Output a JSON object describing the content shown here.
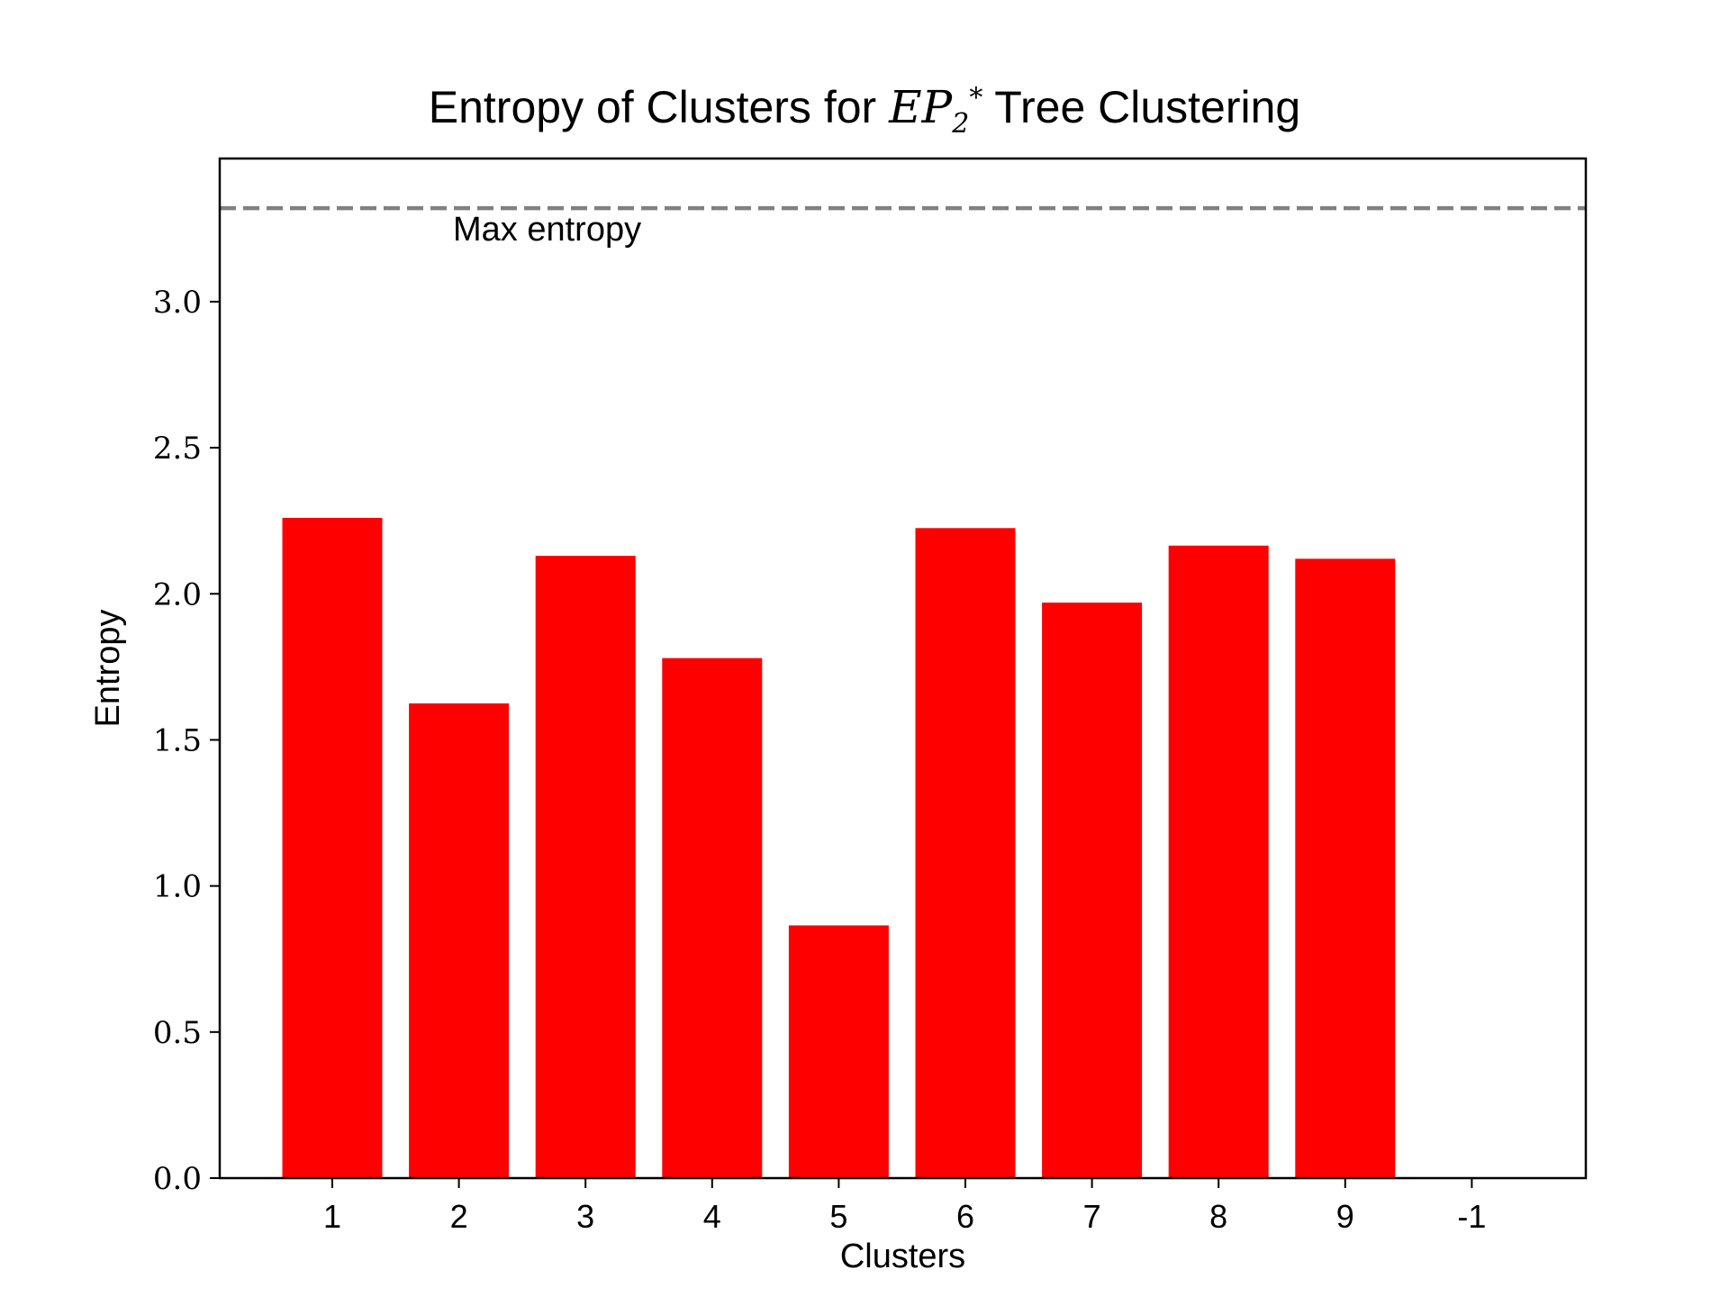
{
  "chart_data": {
    "type": "bar",
    "title_parts": {
      "before": "Entropy of Clusters for ",
      "math_base": "EP",
      "math_sub": "2",
      "math_sup": "*",
      "after": " Tree Clustering"
    },
    "xlabel": "Clusters",
    "ylabel": "Entropy",
    "categories": [
      "1",
      "2",
      "3",
      "4",
      "5",
      "6",
      "7",
      "8",
      "9",
      "-1"
    ],
    "values": [
      2.26,
      1.625,
      2.13,
      1.78,
      0.865,
      2.225,
      1.97,
      2.165,
      2.12,
      0
    ],
    "bar_color": "#ff0000",
    "ylim": [
      0,
      3.49
    ],
    "yticks": [
      "0.0",
      "0.5",
      "1.0",
      "1.5",
      "2.0",
      "2.5",
      "3.0"
    ],
    "reference_line": {
      "value": 3.32,
      "label": "Max entropy",
      "color": "#808080",
      "style": "dashed"
    },
    "grid": false,
    "legend": "none"
  }
}
